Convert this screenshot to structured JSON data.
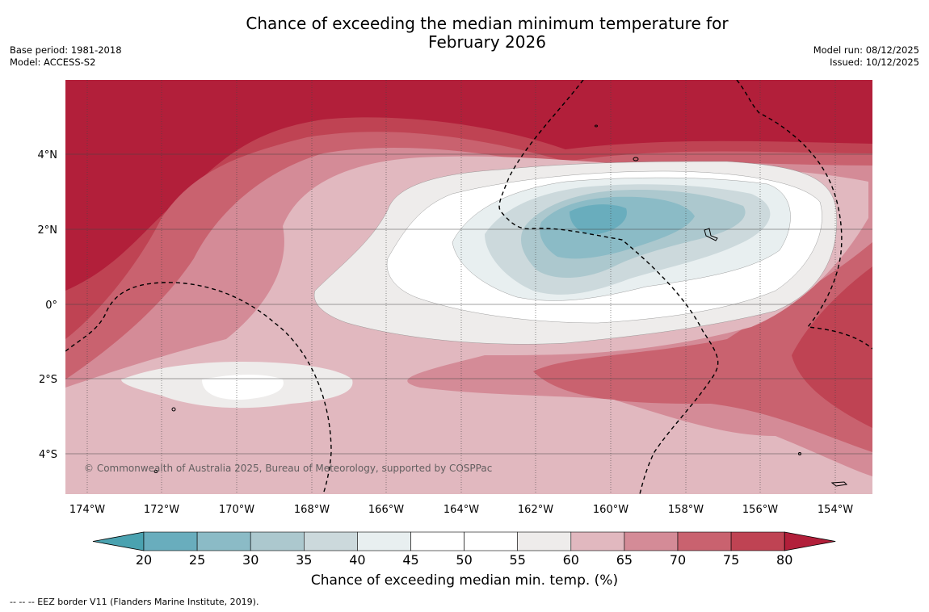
{
  "title_line1": "Chance of exceeding the median minimum temperature for",
  "title_line2": "February 2026",
  "meta_left": [
    "Base period: 1981-2018",
    "Model: ACCESS-S2"
  ],
  "meta_right": [
    "Model run: 08/12/2025",
    "Issued: 10/12/2025"
  ],
  "copyright": "© Commonwealth of Australia 2025, Bureau of Meteorology, supported by COSPPac",
  "lat_labels": [
    "4°N",
    "2°N",
    "0°",
    "2°S",
    "4°S"
  ],
  "lon_labels": [
    "174°W",
    "172°W",
    "170°W",
    "168°W",
    "166°W",
    "164°W",
    "162°W",
    "160°W",
    "158°W",
    "156°W",
    "154°W"
  ],
  "colorbar": {
    "label": "Chance of exceeding median min. temp. (%)",
    "ticks": [
      "20",
      "25",
      "30",
      "35",
      "40",
      "45",
      "50",
      "55",
      "60",
      "65",
      "70",
      "75",
      "80"
    ],
    "colors": [
      "#4aa2b0",
      "#69adbd",
      "#8bbbc6",
      "#acc8ce",
      "#ccd9dc",
      "#e8eff0",
      "#ffffff",
      "#ffffff",
      "#eeeceb",
      "#e1b8bf",
      "#d48b97",
      "#c9626f",
      "#bf4353",
      "#b21f3a"
    ]
  },
  "legend_note": "--  --  -- EEZ border V11 (Flanders Marine Institute, 2019)."
}
